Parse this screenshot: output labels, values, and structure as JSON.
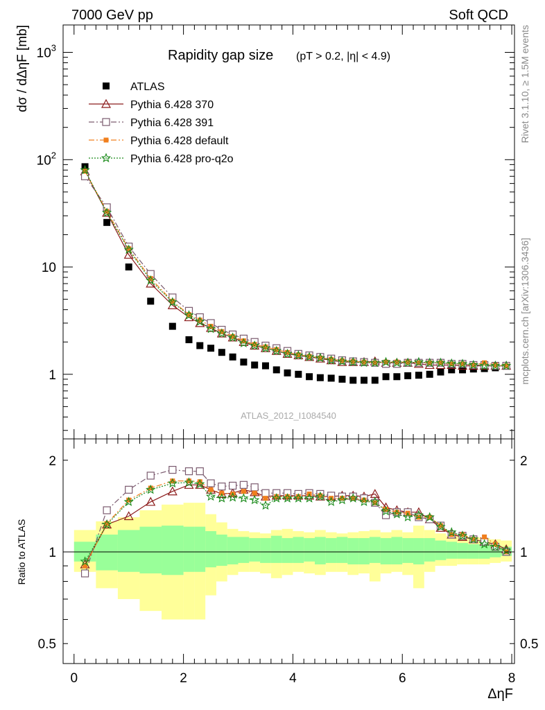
{
  "header": {
    "left": "7000 GeV pp",
    "right": "Soft QCD"
  },
  "side_text": {
    "top": "Rivet 3.1.10, ≥ 1.5M events",
    "bottom": "mcplots.cern.ch [arXiv:1306.3436]"
  },
  "chart_data": [
    {
      "type": "scatter",
      "panel": "main",
      "title": "Rapidity gap size",
      "title_sub": "(pT > 0.2, |η| < 4.9)",
      "watermark": "ATLAS_2012_I1084540",
      "ylabel": "dσ / dΔηF [mb]",
      "yscale": "log",
      "ylim": [
        0.25,
        1800
      ],
      "xlim": [
        -0.2,
        8.05
      ],
      "yticks": [
        {
          "value": 1000,
          "label": "10",
          "sup": "3"
        },
        {
          "value": 100,
          "label": "10",
          "sup": "2"
        },
        {
          "value": 10,
          "label": "10",
          "sup": ""
        },
        {
          "value": 1,
          "label": "1",
          "sup": ""
        }
      ],
      "x": [
        0.2,
        0.6,
        1.0,
        1.4,
        1.8,
        2.1,
        2.3,
        2.5,
        2.7,
        2.9,
        3.1,
        3.3,
        3.5,
        3.7,
        3.9,
        4.1,
        4.3,
        4.5,
        4.7,
        4.9,
        5.1,
        5.3,
        5.5,
        5.7,
        5.9,
        6.1,
        6.3,
        6.5,
        6.7,
        6.9,
        7.1,
        7.3,
        7.5,
        7.7,
        7.9
      ],
      "series": [
        {
          "name": "ATLAS",
          "marker": "square",
          "color": "#000000",
          "line": "none",
          "values": [
            86,
            26,
            10,
            4.8,
            2.8,
            2.1,
            1.85,
            1.75,
            1.6,
            1.45,
            1.3,
            1.22,
            1.2,
            1.1,
            1.03,
            1.0,
            0.95,
            0.93,
            0.92,
            0.9,
            0.88,
            0.88,
            0.88,
            0.95,
            0.95,
            0.97,
            0.98,
            1.0,
            1.05,
            1.1,
            1.1,
            1.12,
            1.13,
            1.15,
            1.2
          ]
        },
        {
          "name": "Pythia 6.428 370",
          "marker": "triangle",
          "color": "#8b1a1a",
          "line": "solid",
          "values": [
            78,
            32,
            13,
            7.0,
            4.4,
            3.4,
            3.0,
            2.7,
            2.4,
            2.2,
            2.0,
            1.85,
            1.75,
            1.65,
            1.55,
            1.5,
            1.45,
            1.4,
            1.35,
            1.3,
            1.3,
            1.3,
            1.32,
            1.28,
            1.28,
            1.28,
            1.25,
            1.22,
            1.22,
            1.22,
            1.2,
            1.2,
            1.2,
            1.2,
            1.2
          ]
        },
        {
          "name": "Pythia 6.428 391",
          "marker": "open-square",
          "color": "#7a5a6e",
          "line": "dashdot",
          "values": [
            70,
            36,
            15.5,
            8.6,
            5.2,
            3.9,
            3.4,
            3.0,
            2.6,
            2.35,
            2.15,
            2.0,
            1.85,
            1.75,
            1.65,
            1.55,
            1.5,
            1.45,
            1.4,
            1.35,
            1.32,
            1.3,
            1.28,
            1.25,
            1.25,
            1.28,
            1.28,
            1.28,
            1.28,
            1.25,
            1.25,
            1.22,
            1.22,
            1.2,
            1.2
          ]
        },
        {
          "name": "Pythia 6.428 default",
          "marker": "filled-square",
          "color": "#f07f1e",
          "line": "dashdot",
          "values": [
            78,
            33,
            14.8,
            7.8,
            4.8,
            3.6,
            3.2,
            2.8,
            2.5,
            2.25,
            2.05,
            1.9,
            1.8,
            1.7,
            1.6,
            1.52,
            1.47,
            1.42,
            1.38,
            1.34,
            1.32,
            1.3,
            1.28,
            1.3,
            1.3,
            1.3,
            1.28,
            1.28,
            1.28,
            1.25,
            1.25,
            1.22,
            1.28,
            1.22,
            1.2
          ]
        },
        {
          "name": "Pythia 6.428 pro-q2o",
          "marker": "star",
          "color": "#1a8a1a",
          "line": "dotted",
          "values": [
            80,
            32,
            14.5,
            7.5,
            4.7,
            3.55,
            3.1,
            2.65,
            2.4,
            2.2,
            1.95,
            1.85,
            1.75,
            1.65,
            1.55,
            1.5,
            1.45,
            1.42,
            1.35,
            1.32,
            1.3,
            1.28,
            1.28,
            1.3,
            1.28,
            1.28,
            1.3,
            1.28,
            1.28,
            1.26,
            1.25,
            1.22,
            1.2,
            1.2,
            1.2
          ]
        }
      ]
    },
    {
      "type": "line",
      "panel": "ratio",
      "ylabel": "Ratio to ATLAS",
      "xlabel": "ΔηF",
      "yscale": "log",
      "ylim": [
        0.43,
        2.35
      ],
      "xlim": [
        -0.2,
        8.05
      ],
      "xticks": [
        0,
        2,
        4,
        6,
        8
      ],
      "yticks": [
        {
          "value": 2,
          "label": "2"
        },
        {
          "value": 1,
          "label": "1"
        },
        {
          "value": 0.5,
          "label": "0.5"
        }
      ],
      "reference": 1,
      "band_edges": [
        0,
        0.4,
        0.8,
        1.2,
        1.6,
        2.0,
        2.2,
        2.4,
        2.6,
        2.8,
        3.0,
        3.2,
        3.4,
        3.6,
        3.8,
        4.0,
        4.2,
        4.4,
        4.6,
        4.8,
        5.0,
        5.2,
        5.4,
        5.6,
        5.8,
        6.0,
        6.2,
        6.4,
        6.6,
        6.8,
        7.0,
        7.2,
        7.4,
        7.6,
        7.8,
        8.0
      ],
      "band_stat": [
        [
          0.93,
          1.08
        ],
        [
          0.87,
          1.14
        ],
        [
          0.86,
          1.18
        ],
        [
          0.85,
          1.21
        ],
        [
          0.84,
          1.22
        ],
        [
          0.86,
          1.21
        ],
        [
          0.86,
          1.21
        ],
        [
          0.89,
          1.17
        ],
        [
          0.9,
          1.14
        ],
        [
          0.91,
          1.12
        ],
        [
          0.92,
          1.12
        ],
        [
          0.93,
          1.11
        ],
        [
          0.92,
          1.11
        ],
        [
          0.92,
          1.13
        ],
        [
          0.92,
          1.11
        ],
        [
          0.92,
          1.12
        ],
        [
          0.93,
          1.11
        ],
        [
          0.91,
          1.12
        ],
        [
          0.92,
          1.11
        ],
        [
          0.92,
          1.12
        ],
        [
          0.91,
          1.11
        ],
        [
          0.91,
          1.11
        ],
        [
          0.92,
          1.12
        ],
        [
          0.91,
          1.11
        ],
        [
          0.91,
          1.12
        ],
        [
          0.92,
          1.11
        ],
        [
          0.91,
          1.11
        ],
        [
          0.93,
          1.11
        ],
        [
          0.94,
          1.09
        ],
        [
          0.95,
          1.08
        ],
        [
          0.95,
          1.07
        ],
        [
          0.95,
          1.06
        ],
        [
          0.95,
          1.06
        ],
        [
          0.96,
          1.05
        ],
        [
          0.97,
          1.04
        ]
      ],
      "band_total": [
        [
          0.86,
          1.18
        ],
        [
          0.76,
          1.26
        ],
        [
          0.7,
          1.3
        ],
        [
          0.64,
          1.37
        ],
        [
          0.6,
          1.43
        ],
        [
          0.6,
          1.45
        ],
        [
          0.6,
          1.45
        ],
        [
          0.72,
          1.33
        ],
        [
          0.8,
          1.25
        ],
        [
          0.84,
          1.19
        ],
        [
          0.86,
          1.17
        ],
        [
          0.86,
          1.16
        ],
        [
          0.85,
          1.15
        ],
        [
          0.82,
          1.18
        ],
        [
          0.84,
          1.19
        ],
        [
          0.86,
          1.17
        ],
        [
          0.85,
          1.16
        ],
        [
          0.84,
          1.18
        ],
        [
          0.86,
          1.16
        ],
        [
          0.86,
          1.15
        ],
        [
          0.84,
          1.16
        ],
        [
          0.85,
          1.17
        ],
        [
          0.8,
          1.18
        ],
        [
          0.85,
          1.16
        ],
        [
          0.86,
          1.18
        ],
        [
          0.84,
          1.16
        ],
        [
          0.76,
          1.22
        ],
        [
          0.86,
          1.18
        ],
        [
          0.9,
          1.15
        ],
        [
          0.9,
          1.13
        ],
        [
          0.91,
          1.13
        ],
        [
          0.91,
          1.12
        ],
        [
          0.91,
          1.11
        ],
        [
          0.92,
          1.1
        ],
        [
          0.93,
          1.09
        ]
      ],
      "x": [
        0.2,
        0.6,
        1.0,
        1.4,
        1.8,
        2.1,
        2.3,
        2.5,
        2.7,
        2.9,
        3.1,
        3.3,
        3.5,
        3.7,
        3.9,
        4.1,
        4.3,
        4.5,
        4.7,
        4.9,
        5.1,
        5.3,
        5.5,
        5.7,
        5.9,
        6.1,
        6.3,
        6.5,
        6.7,
        6.9,
        7.1,
        7.3,
        7.5,
        7.7,
        7.9
      ],
      "series": [
        {
          "name": "Pythia 6.428 370",
          "marker": "triangle",
          "color": "#8b1a1a",
          "line": "solid",
          "values": [
            0.91,
            1.23,
            1.31,
            1.46,
            1.58,
            1.66,
            1.66,
            1.6,
            1.55,
            1.56,
            1.6,
            1.57,
            1.52,
            1.53,
            1.53,
            1.53,
            1.53,
            1.52,
            1.52,
            1.53,
            1.53,
            1.52,
            1.55,
            1.4,
            1.37,
            1.35,
            1.35,
            1.28,
            1.2,
            1.14,
            1.12,
            1.1,
            1.08,
            1.06,
            1.02
          ]
        },
        {
          "name": "Pythia 6.428 391",
          "marker": "open-square",
          "color": "#7a5a6e",
          "line": "dashdot",
          "values": [
            0.85,
            1.37,
            1.6,
            1.78,
            1.86,
            1.84,
            1.84,
            1.68,
            1.64,
            1.65,
            1.66,
            1.63,
            1.56,
            1.56,
            1.56,
            1.55,
            1.56,
            1.55,
            1.53,
            1.52,
            1.52,
            1.5,
            1.45,
            1.32,
            1.35,
            1.35,
            1.3,
            1.28,
            1.22,
            1.14,
            1.13,
            1.1,
            1.08,
            1.04,
            1.0
          ]
        },
        {
          "name": "Pythia 6.428 default",
          "marker": "filled-square",
          "color": "#f07f1e",
          "line": "dashdot",
          "values": [
            0.9,
            1.24,
            1.48,
            1.62,
            1.71,
            1.71,
            1.7,
            1.6,
            1.56,
            1.55,
            1.58,
            1.56,
            1.5,
            1.52,
            1.52,
            1.52,
            1.55,
            1.53,
            1.5,
            1.5,
            1.5,
            1.48,
            1.45,
            1.38,
            1.35,
            1.34,
            1.3,
            1.3,
            1.22,
            1.14,
            1.14,
            1.1,
            1.12,
            1.06,
            1.0
          ]
        },
        {
          "name": "Pythia 6.428 pro-q2o",
          "marker": "star",
          "color": "#1a8a1a",
          "line": "dotted",
          "values": [
            0.93,
            1.23,
            1.46,
            1.6,
            1.68,
            1.69,
            1.67,
            1.52,
            1.5,
            1.51,
            1.5,
            1.48,
            1.42,
            1.5,
            1.5,
            1.5,
            1.5,
            1.52,
            1.46,
            1.48,
            1.5,
            1.46,
            1.46,
            1.36,
            1.33,
            1.3,
            1.32,
            1.3,
            1.21,
            1.16,
            1.13,
            1.1,
            1.06,
            1.04,
            1.01
          ]
        }
      ]
    }
  ]
}
